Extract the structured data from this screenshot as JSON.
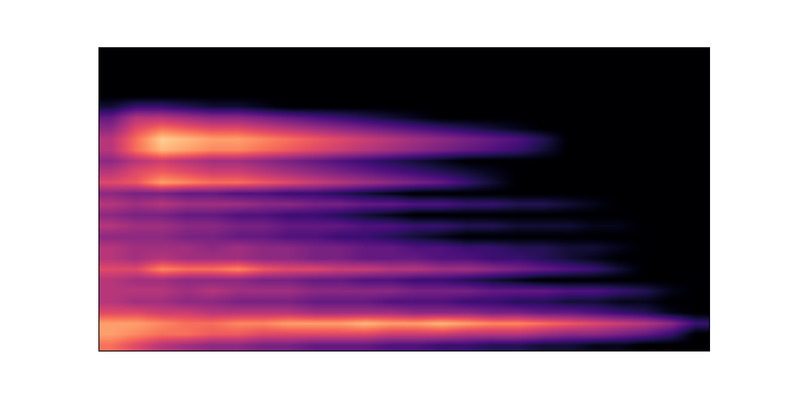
{
  "chart_data": {
    "type": "heatmap",
    "color": "magma",
    "tick_labels": false,
    "cell_range": [
      0,
      1
    ],
    "cells": [
      [
        0,
        0,
        0,
        0,
        0,
        0,
        0,
        0,
        0,
        0,
        0,
        0,
        0,
        0,
        0,
        0,
        0,
        0,
        0,
        0,
        0,
        0,
        0,
        0
      ],
      [
        0,
        0,
        0,
        0,
        0,
        0,
        0,
        0,
        0,
        0,
        0,
        0,
        0,
        0,
        0,
        0,
        0,
        0,
        0,
        0,
        0,
        0,
        0,
        0
      ],
      [
        0,
        0,
        0,
        0,
        0,
        0,
        0,
        0,
        0,
        0,
        0,
        0,
        0,
        0,
        0,
        0,
        0,
        0,
        0,
        0,
        0,
        0,
        0,
        0
      ],
      [
        0,
        0,
        0,
        0,
        0,
        0,
        0,
        0,
        0,
        0,
        0,
        0,
        0,
        0,
        0,
        0,
        0,
        0,
        0,
        0,
        0,
        0,
        0,
        0
      ],
      [
        0,
        0,
        0,
        0,
        0,
        0,
        0,
        0,
        0,
        0,
        0,
        0,
        0,
        0,
        0,
        0,
        0,
        0,
        0,
        0,
        0,
        0,
        0,
        0
      ],
      [
        0.1,
        0.2,
        0.2,
        0.15,
        0.1,
        0.1,
        0.05,
        0,
        0,
        0,
        0,
        0,
        0,
        0,
        0,
        0,
        0,
        0,
        0,
        0,
        0,
        0,
        0,
        0
      ],
      [
        0.3,
        0.5,
        0.5,
        0.45,
        0.4,
        0.4,
        0.35,
        0.3,
        0.25,
        0.2,
        0.15,
        0.1,
        0.05,
        0,
        0,
        0,
        0,
        0,
        0,
        0,
        0,
        0,
        0,
        0
      ],
      [
        0.4,
        0.6,
        0.7,
        0.65,
        0.6,
        0.6,
        0.55,
        0.5,
        0.45,
        0.4,
        0.35,
        0.3,
        0.25,
        0.2,
        0.15,
        0.1,
        0.05,
        0,
        0,
        0,
        0,
        0,
        0,
        0
      ],
      [
        0.5,
        0.7,
        0.9,
        0.85,
        0.8,
        0.8,
        0.75,
        0.7,
        0.65,
        0.6,
        0.55,
        0.5,
        0.45,
        0.4,
        0.35,
        0.3,
        0.25,
        0.15,
        0,
        0,
        0,
        0,
        0,
        0
      ],
      [
        0.5,
        0.7,
        0.85,
        0.8,
        0.75,
        0.75,
        0.7,
        0.65,
        0.6,
        0.55,
        0.5,
        0.45,
        0.4,
        0.35,
        0.3,
        0.25,
        0.2,
        0.1,
        0,
        0,
        0,
        0,
        0,
        0
      ],
      [
        0.4,
        0.5,
        0.55,
        0.5,
        0.45,
        0.45,
        0.4,
        0.35,
        0.3,
        0.25,
        0.2,
        0.15,
        0.1,
        0.05,
        0,
        0,
        0,
        0,
        0,
        0,
        0,
        0,
        0,
        0
      ],
      [
        0.5,
        0.6,
        0.65,
        0.6,
        0.55,
        0.55,
        0.5,
        0.45,
        0.4,
        0.35,
        0.3,
        0.25,
        0.2,
        0.15,
        0.1,
        0.05,
        0,
        0,
        0,
        0,
        0,
        0,
        0,
        0
      ],
      [
        0.6,
        0.65,
        0.8,
        0.75,
        0.7,
        0.7,
        0.65,
        0.6,
        0.55,
        0.5,
        0.45,
        0.4,
        0.35,
        0.3,
        0.2,
        0.1,
        0,
        0,
        0,
        0,
        0,
        0,
        0,
        0
      ],
      [
        0.4,
        0.35,
        0.35,
        0.3,
        0.3,
        0.25,
        0.25,
        0.2,
        0.2,
        0.15,
        0.1,
        0.05,
        0,
        0,
        0,
        0,
        0,
        0,
        0,
        0,
        0,
        0,
        0,
        0
      ],
      [
        0.5,
        0.45,
        0.5,
        0.45,
        0.45,
        0.45,
        0.4,
        0.4,
        0.35,
        0.35,
        0.3,
        0.3,
        0.25,
        0.25,
        0.2,
        0.2,
        0.15,
        0.15,
        0.1,
        0.05,
        0,
        0,
        0,
        0
      ],
      [
        0.4,
        0.35,
        0.35,
        0.3,
        0.3,
        0.25,
        0.25,
        0.2,
        0.2,
        0.15,
        0.1,
        0.05,
        0,
        0,
        0,
        0,
        0,
        0,
        0,
        0,
        0,
        0,
        0,
        0
      ],
      [
        0.5,
        0.45,
        0.45,
        0.4,
        0.4,
        0.35,
        0.35,
        0.3,
        0.3,
        0.3,
        0.25,
        0.25,
        0.2,
        0.2,
        0.15,
        0.15,
        0.1,
        0.1,
        0.1,
        0.05,
        0.05,
        0,
        0,
        0
      ],
      [
        0.4,
        0.4,
        0.4,
        0.35,
        0.35,
        0.3,
        0.3,
        0.25,
        0.25,
        0.2,
        0.2,
        0.15,
        0.1,
        0.05,
        0,
        0,
        0,
        0,
        0,
        0,
        0,
        0,
        0,
        0
      ],
      [
        0.5,
        0.45,
        0.45,
        0.45,
        0.4,
        0.45,
        0.4,
        0.4,
        0.35,
        0.35,
        0.3,
        0.3,
        0.25,
        0.25,
        0.2,
        0.2,
        0.15,
        0.15,
        0.1,
        0.1,
        0.05,
        0,
        0,
        0
      ],
      [
        0.5,
        0.45,
        0.5,
        0.45,
        0.45,
        0.45,
        0.4,
        0.4,
        0.35,
        0.35,
        0.3,
        0.3,
        0.3,
        0.25,
        0.25,
        0.2,
        0.2,
        0.15,
        0.1,
        0.05,
        0,
        0,
        0,
        0
      ],
      [
        0.6,
        0.6,
        0.75,
        0.7,
        0.7,
        0.75,
        0.65,
        0.6,
        0.6,
        0.55,
        0.55,
        0.5,
        0.5,
        0.45,
        0.45,
        0.4,
        0.35,
        0.3,
        0.25,
        0.2,
        0.1,
        0,
        0,
        0
      ],
      [
        0.5,
        0.45,
        0.45,
        0.4,
        0.4,
        0.4,
        0.35,
        0.35,
        0.3,
        0.3,
        0.25,
        0.25,
        0.2,
        0.2,
        0.15,
        0.1,
        0.05,
        0,
        0,
        0,
        0,
        0,
        0,
        0
      ],
      [
        0.5,
        0.5,
        0.5,
        0.45,
        0.5,
        0.45,
        0.45,
        0.45,
        0.4,
        0.4,
        0.4,
        0.4,
        0.35,
        0.35,
        0.35,
        0.3,
        0.3,
        0.3,
        0.25,
        0.25,
        0.2,
        0.15,
        0.05,
        0
      ],
      [
        0.5,
        0.45,
        0.45,
        0.4,
        0.4,
        0.35,
        0.35,
        0.35,
        0.3,
        0.3,
        0.3,
        0.25,
        0.25,
        0.25,
        0.2,
        0.2,
        0.15,
        0.15,
        0.1,
        0.1,
        0.05,
        0.05,
        0,
        0
      ],
      [
        0.6,
        0.6,
        0.55,
        0.55,
        0.5,
        0.5,
        0.5,
        0.5,
        0.45,
        0.45,
        0.45,
        0.45,
        0.4,
        0.4,
        0.4,
        0.35,
        0.35,
        0.3,
        0.3,
        0.25,
        0.2,
        0.15,
        0.05,
        0
      ],
      [
        0.8,
        0.8,
        0.75,
        0.7,
        0.7,
        0.75,
        0.75,
        0.8,
        0.8,
        0.8,
        0.85,
        0.8,
        0.8,
        0.85,
        0.8,
        0.75,
        0.75,
        0.7,
        0.65,
        0.6,
        0.55,
        0.5,
        0.4,
        0.2
      ],
      [
        0.8,
        0.75,
        0.7,
        0.7,
        0.65,
        0.65,
        0.6,
        0.6,
        0.6,
        0.6,
        0.6,
        0.55,
        0.55,
        0.55,
        0.5,
        0.5,
        0.5,
        0.45,
        0.4,
        0.4,
        0.35,
        0.3,
        0.2,
        0
      ],
      [
        0.7,
        0.6,
        0.5,
        0.45,
        0.4,
        0.4,
        0.35,
        0.35,
        0.3,
        0.3,
        0.3,
        0.25,
        0.25,
        0.2,
        0.2,
        0.15,
        0.15,
        0.1,
        0.1,
        0.05,
        0.05,
        0,
        0,
        0
      ]
    ]
  }
}
